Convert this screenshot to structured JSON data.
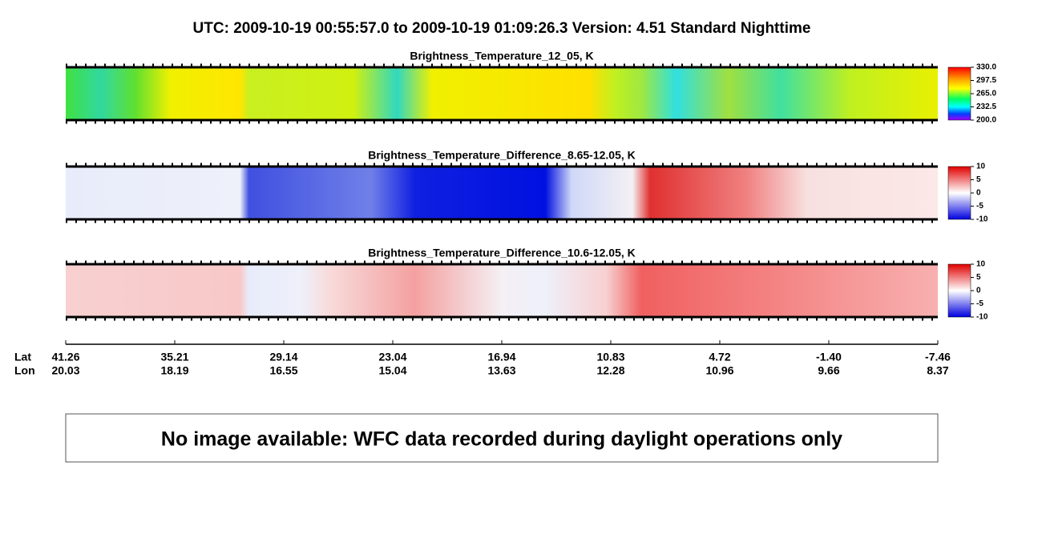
{
  "title": "UTC:  2009-10-19   00:55:57.0  to  2009-10-19   01:09:26.3    Version: 4.51  Standard Nighttime",
  "panels": [
    {
      "title": "Brightness_Temperature_12_05, K",
      "colorbar_labels": [
        "330.0",
        "297.5",
        "265.0",
        "232.5",
        "200.0"
      ]
    },
    {
      "title": "Brightness_Temperature_Difference_8.65-12.05, K",
      "colorbar_labels": [
        "10",
        "5",
        "0",
        "-5",
        "-10"
      ]
    },
    {
      "title": "Brightness_Temperature_Difference_10.6-12.05, K",
      "colorbar_labels": [
        "10",
        "5",
        "0",
        "-5",
        "-10"
      ]
    }
  ],
  "axis": {
    "row_labels": [
      "Lat",
      "Lon"
    ],
    "lat": [
      "41.26",
      "35.21",
      "29.14",
      "23.04",
      "16.94",
      "10.83",
      "4.72",
      "-1.40",
      "-7.46"
    ],
    "lon": [
      "20.03",
      "18.19",
      "16.55",
      "15.04",
      "13.63",
      "12.28",
      "10.96",
      "9.66",
      "8.37"
    ]
  },
  "message": "No image available: WFC data recorded during daylight operations only"
}
